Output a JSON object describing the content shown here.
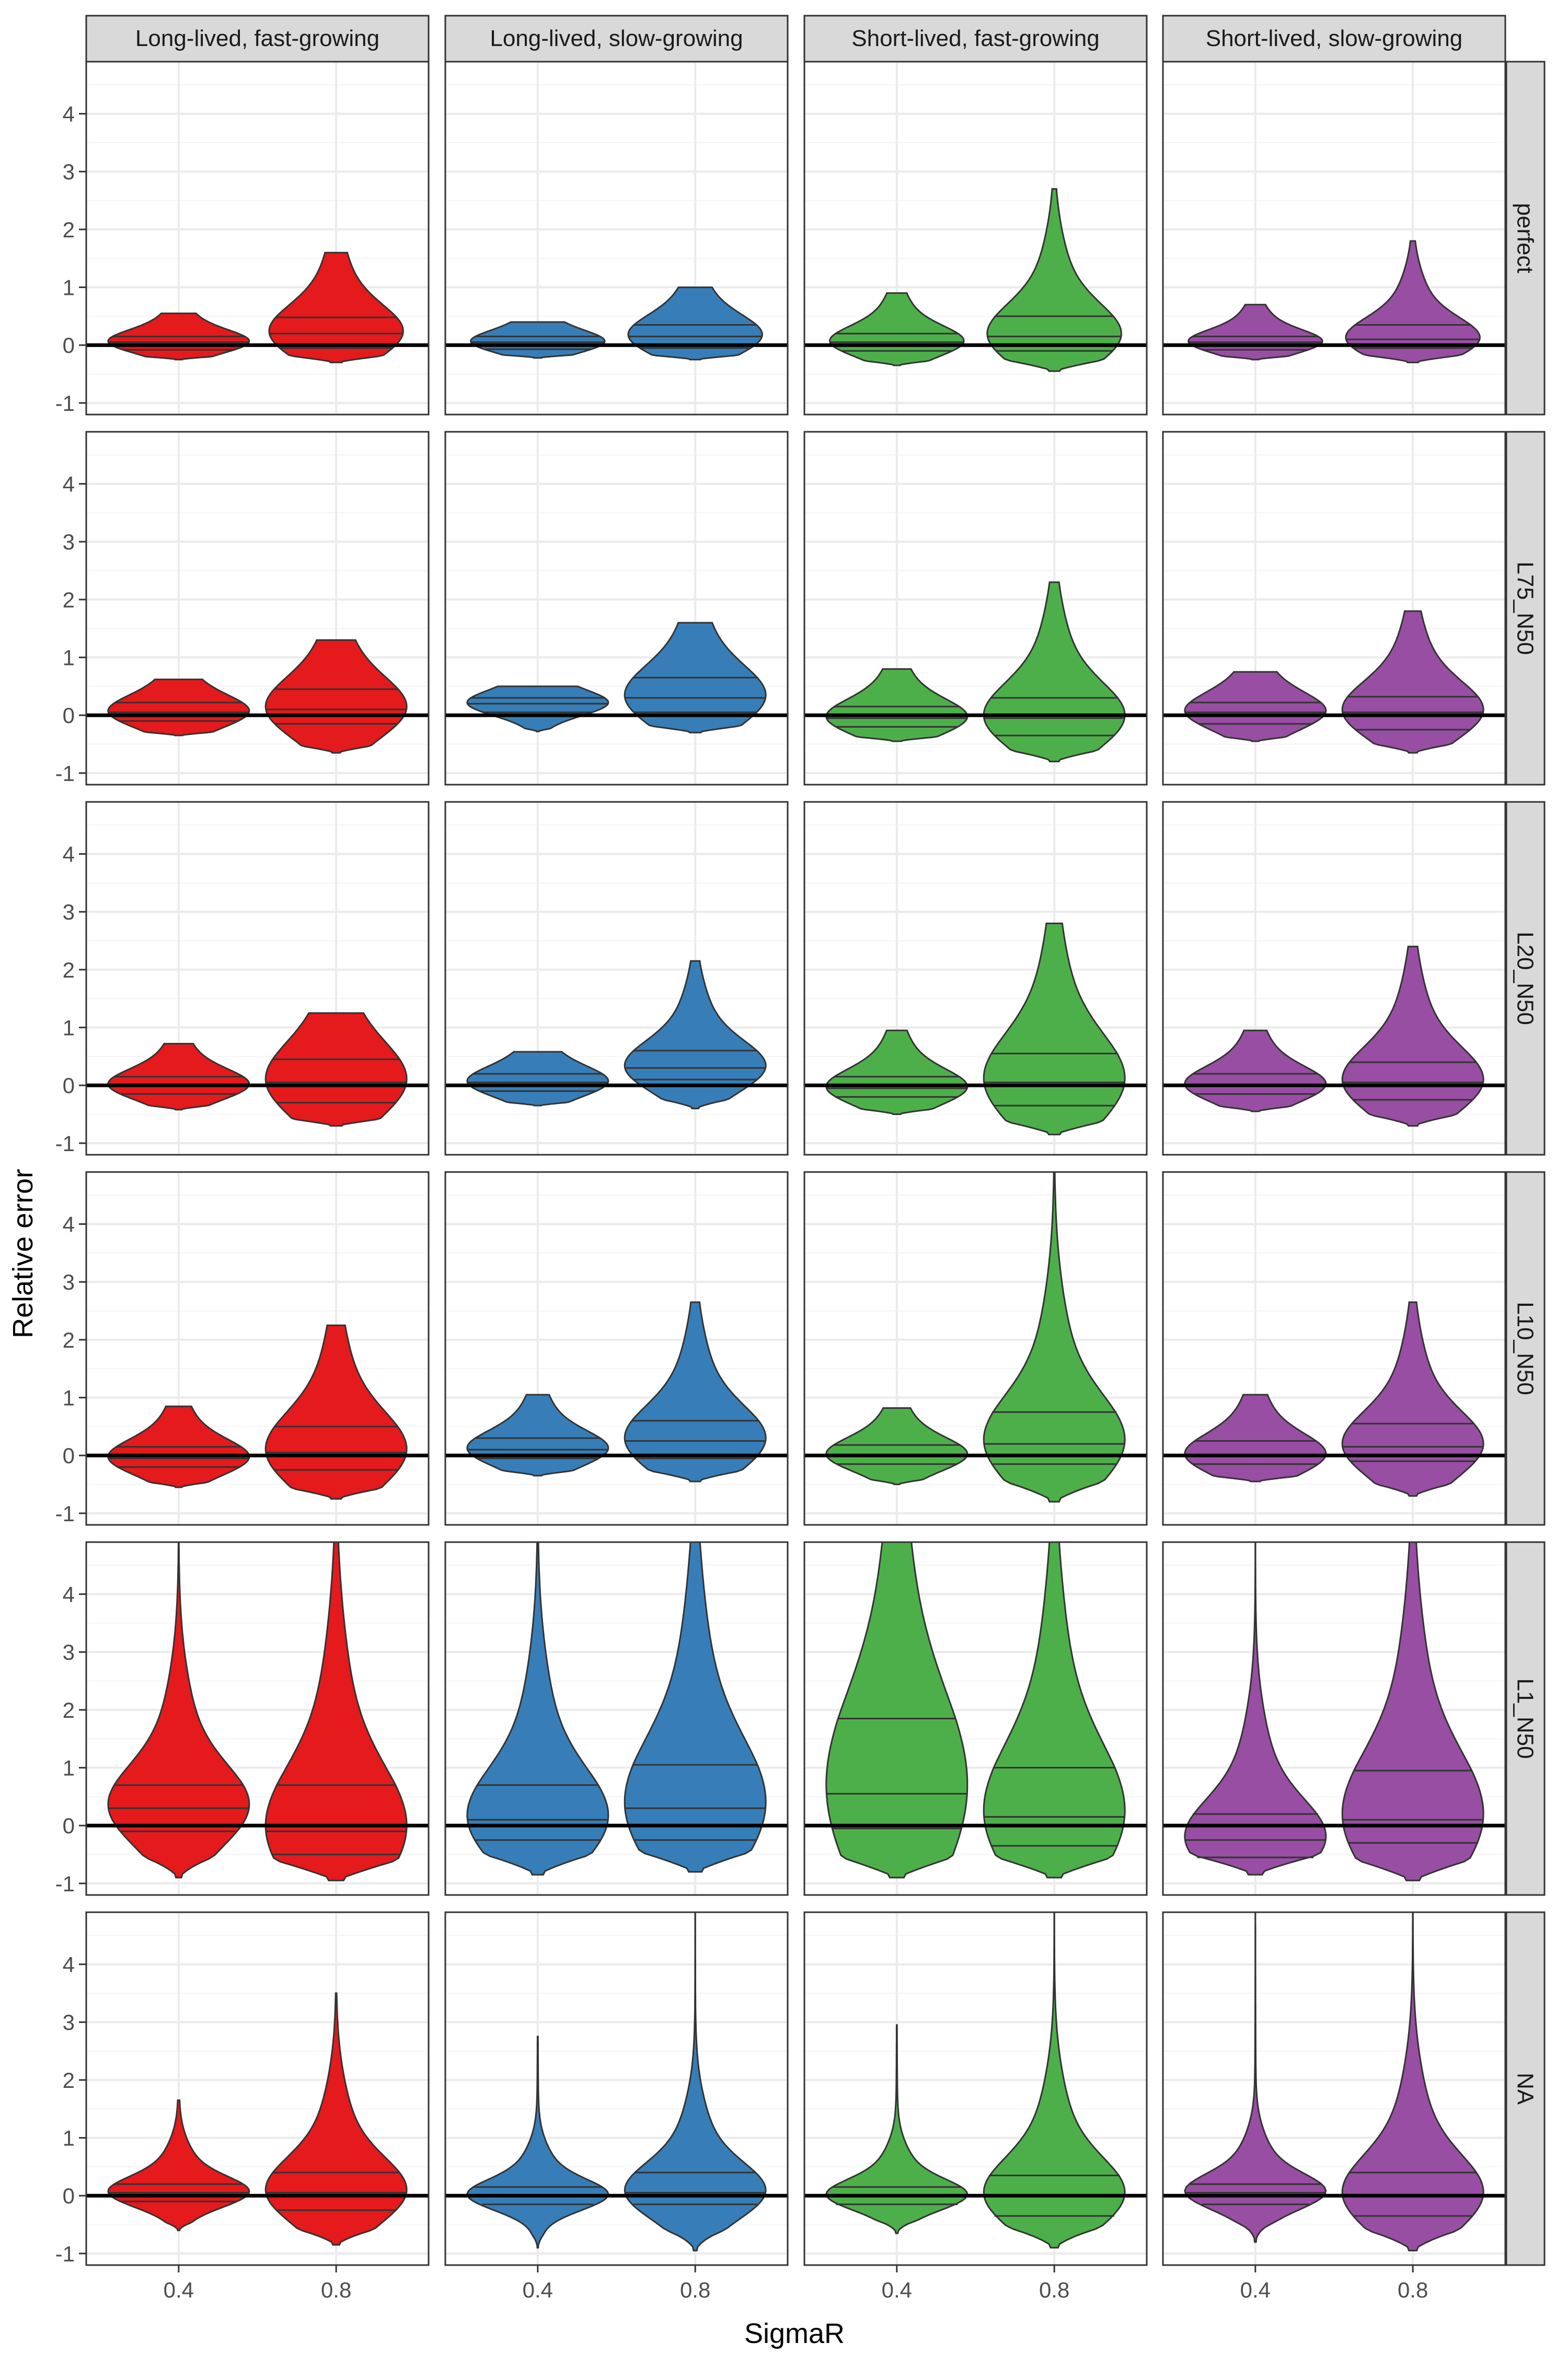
{
  "chart_data": {
    "type": "violin",
    "xlabel": "SigmaR",
    "ylabel": "Relative error",
    "ylim": [
      -1.2,
      4.9
    ],
    "yticks": [
      -1,
      0,
      1,
      2,
      3,
      4
    ],
    "x_categories": [
      "0.4",
      "0.8"
    ],
    "reference_line": 0,
    "quantile_lines": [
      "25%",
      "50%",
      "75%"
    ],
    "column_strips": [
      "Long-lived, fast-growing",
      "Long-lived, slow-growing",
      "Short-lived, fast-growing",
      "Short-lived, slow-growing"
    ],
    "row_strips": [
      "perfect",
      "L75_N50",
      "L20_N50",
      "L10_N50",
      "L1_N50",
      "NA"
    ],
    "colors": {
      "Long-lived, fast-growing": "#E41A1C",
      "Long-lived, slow-growing": "#377EB8",
      "Short-lived, fast-growing": "#4DAF4A",
      "Short-lived, slow-growing": "#984EA3"
    },
    "violins": [
      [
        [
          {
            "min": -0.25,
            "max": 0.55,
            "q": [
              -0.08,
              0.05,
              0.15
            ],
            "w": 1.0
          },
          {
            "min": -0.3,
            "max": 1.6,
            "q": [
              -0.05,
              0.2,
              0.48
            ],
            "w": 0.95
          }
        ],
        [
          {
            "min": -0.22,
            "max": 0.4,
            "q": [
              -0.07,
              0.05,
              0.15
            ],
            "w": 0.95
          },
          {
            "min": -0.25,
            "max": 1.0,
            "q": [
              -0.05,
              0.15,
              0.35
            ],
            "w": 0.95
          }
        ],
        [
          {
            "min": -0.35,
            "max": 0.9,
            "q": [
              -0.1,
              0.05,
              0.2
            ],
            "w": 0.95
          },
          {
            "min": -0.45,
            "max": 2.7,
            "q": [
              -0.1,
              0.15,
              0.5
            ],
            "w": 0.95
          }
        ],
        [
          {
            "min": -0.25,
            "max": 0.7,
            "q": [
              -0.08,
              0.05,
              0.15
            ],
            "w": 0.95
          },
          {
            "min": -0.3,
            "max": 1.8,
            "q": [
              -0.05,
              0.1,
              0.35
            ],
            "w": 0.95
          }
        ]
      ],
      [
        [
          {
            "min": -0.35,
            "max": 0.62,
            "q": [
              -0.1,
              0.05,
              0.22
            ],
            "w": 1.0
          },
          {
            "min": -0.65,
            "max": 1.3,
            "q": [
              -0.15,
              0.1,
              0.45
            ],
            "w": 1.0
          }
        ],
        [
          {
            "min": -0.28,
            "max": 0.5,
            "q": [
              0.05,
              0.2,
              0.3
            ],
            "w": 1.0
          },
          {
            "min": -0.3,
            "max": 1.6,
            "q": [
              0.05,
              0.3,
              0.65
            ],
            "w": 1.0
          }
        ],
        [
          {
            "min": -0.45,
            "max": 0.8,
            "q": [
              -0.2,
              -0.05,
              0.15
            ],
            "w": 1.0
          },
          {
            "min": -0.8,
            "max": 2.3,
            "q": [
              -0.35,
              -0.05,
              0.3
            ],
            "w": 1.0
          }
        ],
        [
          {
            "min": -0.45,
            "max": 0.75,
            "q": [
              -0.15,
              0.05,
              0.22
            ],
            "w": 1.0
          },
          {
            "min": -0.65,
            "max": 1.8,
            "q": [
              -0.25,
              0.05,
              0.32
            ],
            "w": 1.0
          }
        ]
      ],
      [
        [
          {
            "min": -0.42,
            "max": 0.72,
            "q": [
              -0.15,
              0.0,
              0.15
            ],
            "w": 1.0
          },
          {
            "min": -0.7,
            "max": 1.25,
            "q": [
              -0.3,
              0.05,
              0.45
            ],
            "w": 1.0
          }
        ],
        [
          {
            "min": -0.35,
            "max": 0.58,
            "q": [
              -0.1,
              0.05,
              0.2
            ],
            "w": 1.0
          },
          {
            "min": -0.4,
            "max": 2.15,
            "q": [
              0.1,
              0.3,
              0.6
            ],
            "w": 1.0
          }
        ],
        [
          {
            "min": -0.5,
            "max": 0.95,
            "q": [
              -0.2,
              -0.05,
              0.15
            ],
            "w": 1.0
          },
          {
            "min": -0.85,
            "max": 2.8,
            "q": [
              -0.35,
              0.05,
              0.55
            ],
            "w": 1.0
          }
        ],
        [
          {
            "min": -0.45,
            "max": 0.95,
            "q": [
              -0.15,
              0.0,
              0.2
            ],
            "w": 1.0
          },
          {
            "min": -0.7,
            "max": 2.4,
            "q": [
              -0.25,
              0.05,
              0.4
            ],
            "w": 1.0
          }
        ]
      ],
      [
        [
          {
            "min": -0.55,
            "max": 0.85,
            "q": [
              -0.2,
              -0.05,
              0.15
            ],
            "w": 1.0
          },
          {
            "min": -0.75,
            "max": 2.25,
            "q": [
              -0.25,
              0.05,
              0.5
            ],
            "w": 1.0
          }
        ],
        [
          {
            "min": -0.35,
            "max": 1.05,
            "q": [
              -0.05,
              0.1,
              0.3
            ],
            "w": 1.0
          },
          {
            "min": -0.45,
            "max": 2.65,
            "q": [
              -0.05,
              0.25,
              0.6
            ],
            "w": 1.0
          }
        ],
        [
          {
            "min": -0.5,
            "max": 0.82,
            "q": [
              -0.15,
              0.0,
              0.18
            ],
            "w": 1.0
          },
          {
            "min": -0.8,
            "max": 4.9,
            "q": [
              -0.15,
              0.2,
              0.75
            ],
            "w": 1.0
          }
        ],
        [
          {
            "min": -0.45,
            "max": 1.05,
            "q": [
              -0.15,
              0.0,
              0.25
            ],
            "w": 1.0
          },
          {
            "min": -0.7,
            "max": 2.65,
            "q": [
              -0.1,
              0.15,
              0.55
            ],
            "w": 1.0
          }
        ]
      ],
      [
        [
          {
            "min": -0.9,
            "max": 4.9,
            "q": [
              -0.1,
              0.3,
              0.7
            ],
            "w": 1.0
          },
          {
            "min": -0.95,
            "max": 4.9,
            "q": [
              -0.5,
              -0.1,
              0.7
            ],
            "w": 1.0
          }
        ],
        [
          {
            "min": -0.85,
            "max": 4.9,
            "q": [
              -0.25,
              0.1,
              0.7
            ],
            "w": 1.0
          },
          {
            "min": -0.8,
            "max": 4.9,
            "q": [
              -0.25,
              0.3,
              1.05
            ],
            "w": 1.0
          }
        ],
        [
          {
            "min": -0.9,
            "max": 4.9,
            "q": [
              -0.05,
              0.55,
              1.85
            ],
            "w": 1.0
          },
          {
            "min": -0.9,
            "max": 4.9,
            "q": [
              -0.35,
              0.15,
              1.0
            ],
            "w": 1.0
          }
        ],
        [
          {
            "min": -0.85,
            "max": 4.9,
            "q": [
              -0.55,
              -0.25,
              0.2
            ],
            "w": 1.0
          },
          {
            "min": -0.95,
            "max": 4.9,
            "q": [
              -0.3,
              0.1,
              0.95
            ],
            "w": 1.0
          }
        ]
      ],
      [
        [
          {
            "min": -0.6,
            "max": 1.65,
            "q": [
              -0.1,
              0.05,
              0.2
            ],
            "w": 1.0
          },
          {
            "min": -0.85,
            "max": 3.5,
            "q": [
              -0.25,
              0.05,
              0.4
            ],
            "w": 1.0
          }
        ],
        [
          {
            "min": -0.9,
            "max": 2.75,
            "q": [
              -0.15,
              0.0,
              0.15
            ],
            "w": 1.0
          },
          {
            "min": -0.95,
            "max": 4.9,
            "q": [
              -0.15,
              0.05,
              0.4
            ],
            "w": 1.0
          }
        ],
        [
          {
            "min": -0.65,
            "max": 2.95,
            "q": [
              -0.15,
              0.0,
              0.15
            ],
            "w": 1.0
          },
          {
            "min": -0.9,
            "max": 4.9,
            "q": [
              -0.35,
              0.0,
              0.35
            ],
            "w": 1.0
          }
        ],
        [
          {
            "min": -0.8,
            "max": 4.9,
            "q": [
              -0.15,
              0.05,
              0.2
            ],
            "w": 1.0
          },
          {
            "min": -0.95,
            "max": 4.9,
            "q": [
              -0.35,
              0.0,
              0.4
            ],
            "w": 1.0
          }
        ]
      ]
    ]
  }
}
